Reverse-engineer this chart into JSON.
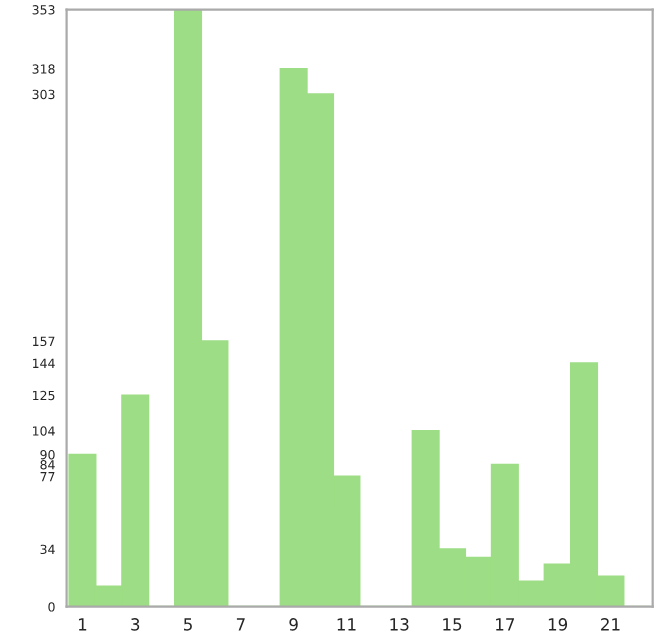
{
  "chart_data": {
    "type": "bar",
    "categories": [
      "1",
      null,
      "3",
      null,
      "5",
      null,
      "7",
      null,
      "9",
      null,
      "11",
      null,
      "13",
      null,
      "15",
      null,
      "17",
      null,
      "19",
      null,
      "21",
      null
    ],
    "values": [
      90,
      12,
      125,
      0,
      353,
      157,
      0,
      0,
      318,
      303,
      77,
      0,
      0,
      104,
      34,
      29,
      84,
      15,
      25,
      144,
      18,
      0
    ],
    "color": "#9ddd85",
    "ylim": [
      0,
      353
    ],
    "yticks": [
      0,
      34,
      77,
      84,
      90,
      104,
      125,
      144,
      157,
      303,
      318,
      353
    ],
    "grid": false
  }
}
